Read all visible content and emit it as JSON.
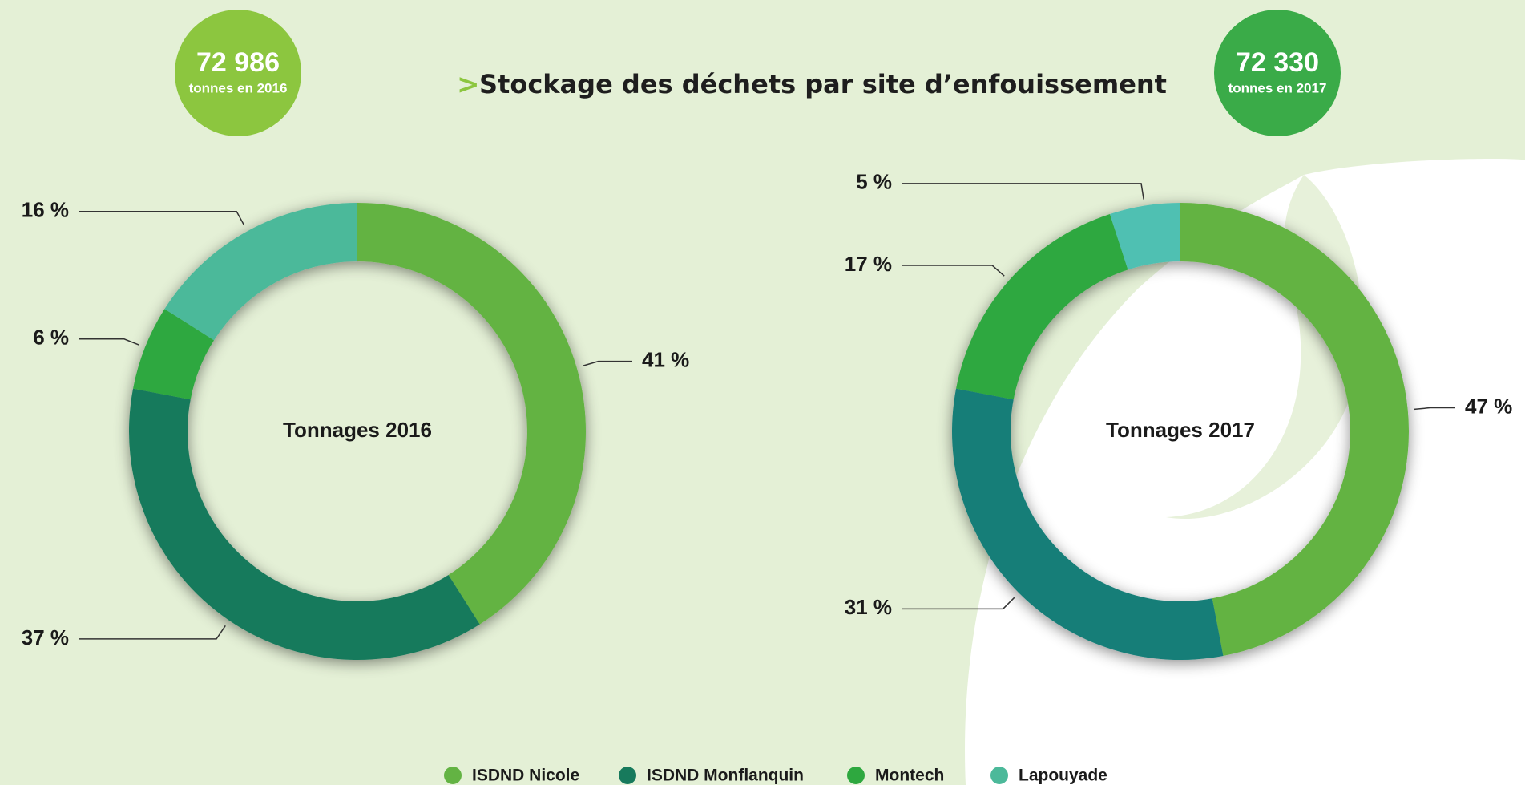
{
  "title_marker": ">",
  "title": "Stockage des déchets par site d’enfouissement",
  "chart_data": [
    {
      "type": "pie",
      "center_label": "Tonnages 2016",
      "badge": {
        "value": "72 986",
        "caption": "tonnes en 2016",
        "color": "#8cc63f"
      },
      "categories": [
        "ISDND Nicole",
        "ISDND Monflanquin",
        "Montech",
        "Lapouyade"
      ],
      "values": [
        41,
        37,
        6,
        16
      ],
      "value_labels": [
        "41 %",
        "37 %",
        "6 %",
        "16 %"
      ],
      "colors": [
        "#63b343",
        "#177a5c",
        "#2ea83f",
        "#4cb99a"
      ]
    },
    {
      "type": "pie",
      "center_label": "Tonnages 2017",
      "badge": {
        "value": "72 330",
        "caption": "tonnes en 2017",
        "color": "#3aab48"
      },
      "categories": [
        "ISDND Nicole",
        "ISDND Monflanquin",
        "Montech",
        "Lapouyade"
      ],
      "values": [
        47,
        31,
        17,
        5
      ],
      "value_labels": [
        "47 %",
        "31 %",
        "17 %",
        "5 %"
      ],
      "colors": [
        "#63b343",
        "#137e78",
        "#2ea83f",
        "#4fc0b2"
      ]
    }
  ]
}
